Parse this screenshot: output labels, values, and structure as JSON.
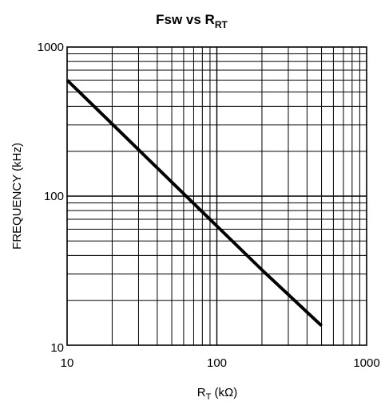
{
  "chart_data": {
    "type": "line",
    "title_main": "Fsw vs R",
    "title_sub": "RT",
    "xlabel_main": "R",
    "xlabel_sub": "T",
    "xlabel_unit": " (kΩ)",
    "ylabel": "FREQUENCY (kHz)",
    "xscale": "log",
    "yscale": "log",
    "xlim": [
      10,
      1000
    ],
    "ylim": [
      10,
      1000
    ],
    "x_ticks": [
      {
        "value": 10,
        "label": "10"
      },
      {
        "value": 100,
        "label": "100"
      },
      {
        "value": 1000,
        "label": "1000"
      }
    ],
    "y_ticks": [
      {
        "value": 10,
        "label": "10"
      },
      {
        "value": 100,
        "label": "100"
      },
      {
        "value": 1000,
        "label": "1000"
      }
    ],
    "grid": true,
    "series": [
      {
        "color": "#000000",
        "x": [
          10,
          20,
          50,
          100,
          200,
          500
        ],
        "y": [
          600,
          305,
          124,
          63,
          32,
          13.5
        ]
      }
    ]
  }
}
